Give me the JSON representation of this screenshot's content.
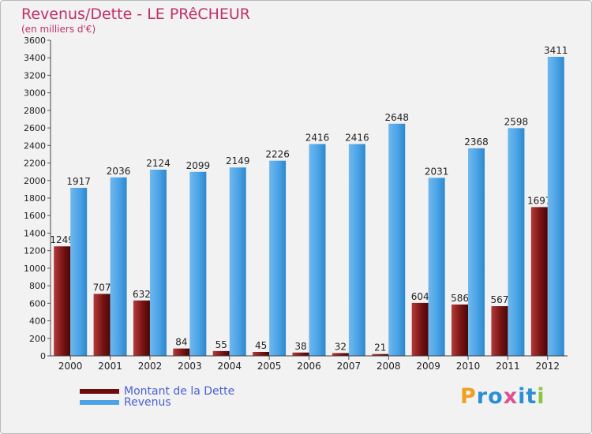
{
  "chart_data": {
    "type": "bar",
    "title": "Revenus/Dette - LE PRêCHEUR",
    "subtitle": "(en milliers d'€)",
    "xlabel": "",
    "ylabel": "",
    "ylim": [
      0,
      3600
    ],
    "yticks": [
      0,
      200,
      400,
      600,
      800,
      1000,
      1200,
      1400,
      1600,
      1800,
      2000,
      2200,
      2400,
      2600,
      2800,
      3000,
      3200,
      3400,
      3600
    ],
    "grid": false,
    "legend_position": "bottom-left",
    "categories": [
      "2000",
      "2001",
      "2002",
      "2003",
      "2004",
      "2005",
      "2006",
      "2007",
      "2008",
      "2009",
      "2010",
      "2011",
      "2012"
    ],
    "series": [
      {
        "name": "Montant de la Dette",
        "color": "#6b0d0d",
        "values": [
          1249,
          707,
          632,
          84,
          55,
          45,
          38,
          32,
          21,
          604,
          586,
          567,
          1697
        ]
      },
      {
        "name": "Revenus",
        "color": "#4aa3e6",
        "values": [
          1917,
          2036,
          2124,
          2099,
          2149,
          2226,
          2416,
          2416,
          2648,
          2031,
          2368,
          2598,
          3411
        ]
      }
    ]
  },
  "logo": {
    "text": "Proxiti",
    "letters": [
      {
        "char": "P",
        "color": "#f0a020"
      },
      {
        "char": "r",
        "color": "#2b8fd6"
      },
      {
        "char": "o",
        "color": "#2b8fd6"
      },
      {
        "char": "x",
        "color": "#e0508c"
      },
      {
        "char": "i",
        "color": "#2b8fd6"
      },
      {
        "char": "t",
        "color": "#2b8fd6"
      },
      {
        "char": "i",
        "color": "#8cc63f"
      }
    ]
  }
}
